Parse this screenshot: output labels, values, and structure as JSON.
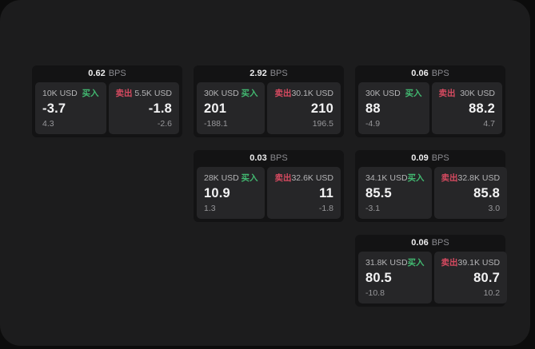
{
  "labels": {
    "bps_unit": "BPS",
    "buy": "买入",
    "sell": "卖出"
  },
  "colors": {
    "surface": "#1c1c1d",
    "card": "#131314",
    "pane": "#262628",
    "buy": "#42b971",
    "sell": "#d64a60"
  },
  "cards": [
    {
      "bps": "0.62",
      "buy": {
        "amount": "10K USD",
        "price": "-3.7",
        "sub": "4.3"
      },
      "sell": {
        "amount": "5.5K USD",
        "price": "-1.8",
        "sub": "-2.6"
      }
    },
    {
      "bps": "2.92",
      "buy": {
        "amount": "30K USD",
        "price": "201",
        "sub": "-188.1"
      },
      "sell": {
        "amount": "30.1K USD",
        "price": "210",
        "sub": "196.5"
      }
    },
    {
      "bps": "0.06",
      "buy": {
        "amount": "30K USD",
        "price": "88",
        "sub": "-4.9"
      },
      "sell": {
        "amount": "30K USD",
        "price": "88.2",
        "sub": "4.7"
      }
    },
    {
      "bps": "0.03",
      "buy": {
        "amount": "28K USD",
        "price": "10.9",
        "sub": "1.3"
      },
      "sell": {
        "amount": "32.6K USD",
        "price": "11",
        "sub": "-1.8"
      }
    },
    {
      "bps": "0.09",
      "buy": {
        "amount": "34.1K USD",
        "price": "85.5",
        "sub": "-3.1"
      },
      "sell": {
        "amount": "32.8K USD",
        "price": "85.8",
        "sub": "3.0"
      }
    },
    {
      "bps": "0.06",
      "buy": {
        "amount": "31.8K USD",
        "price": "80.5",
        "sub": "-10.8"
      },
      "sell": {
        "amount": "39.1K USD",
        "price": "80.7",
        "sub": "10.2"
      }
    }
  ]
}
